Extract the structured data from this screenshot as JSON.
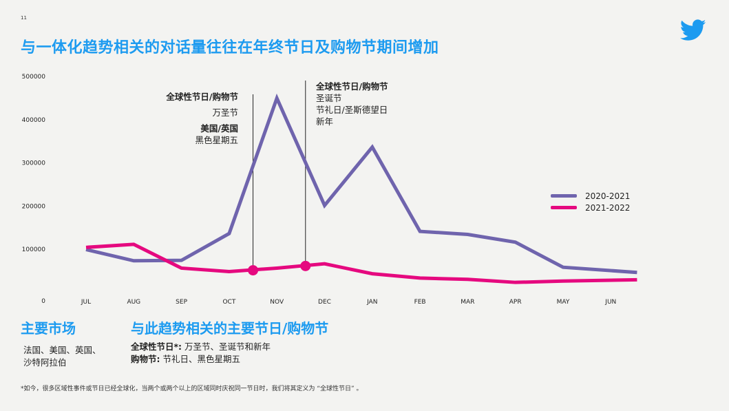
{
  "page_number": "11",
  "title": "与一体化趋势相关的对话量往往在年终节日及购物节期间增加",
  "annotations": {
    "left": {
      "heading1": "全球性节日/购物节",
      "line1": "万圣节",
      "heading2": "美国/英国",
      "line2": "黑色星期五"
    },
    "right": {
      "heading1": "全球性节日/购物节",
      "line1": "圣诞节",
      "line2": "节礼日/圣斯德望日",
      "line3": "新年"
    }
  },
  "markets": {
    "heading": "主要市场",
    "line1": "法国、美国、英国、",
    "line2": "沙特阿拉伯"
  },
  "holidays": {
    "heading": "与此趋势相关的主要节日/购物节",
    "row1_label": "全球性节日*:",
    "row1_value": "万圣节、圣诞节和新年",
    "row2_label": "购物节:",
    "row2_value": "节礼日、黑色星期五"
  },
  "footnote": "*如今，很多区域性事件或节日已经全球化，当两个或两个以上的区域同时庆祝同一节日时，我们将其定义为 “全球性节日” 。",
  "colors": {
    "title_blue": "#1d9bf0",
    "series_2020": "#6f64ad",
    "series_2021": "#e5097f"
  },
  "chart_data": {
    "type": "line",
    "categories": [
      "JUL",
      "AUG",
      "SEP",
      "OCT",
      "NOV",
      "DEC",
      "JAN",
      "FEB",
      "MAR",
      "APR",
      "MAY",
      "JUN"
    ],
    "yticks": [
      "0",
      "100000",
      "200000",
      "300000",
      "400000",
      "500000"
    ],
    "ylim": [
      0,
      500000
    ],
    "grid": false,
    "legend_position": "right",
    "series": [
      {
        "name": "2020-2021",
        "color": "#6f64ad",
        "x": [
          0,
          1,
          2,
          3,
          4,
          5,
          6,
          7,
          8,
          9,
          10,
          11.55
        ],
        "values": [
          98000,
          72000,
          73000,
          135000,
          448000,
          200000,
          335000,
          140000,
          133000,
          115000,
          57000,
          45000
        ]
      },
      {
        "name": "2021-2022",
        "color": "#e5097f",
        "x": [
          0,
          1,
          2,
          3,
          4,
          5,
          6,
          7,
          8,
          9,
          10,
          11.55
        ],
        "values": [
          103000,
          110000,
          55000,
          47000,
          55000,
          65000,
          42000,
          32000,
          29000,
          22000,
          25000,
          28000
        ]
      }
    ],
    "markers": [
      {
        "x": 3.5,
        "series": "2021-2022",
        "value": 50000
      },
      {
        "x": 4.6,
        "series": "2021-2022",
        "value": 60000
      }
    ]
  }
}
